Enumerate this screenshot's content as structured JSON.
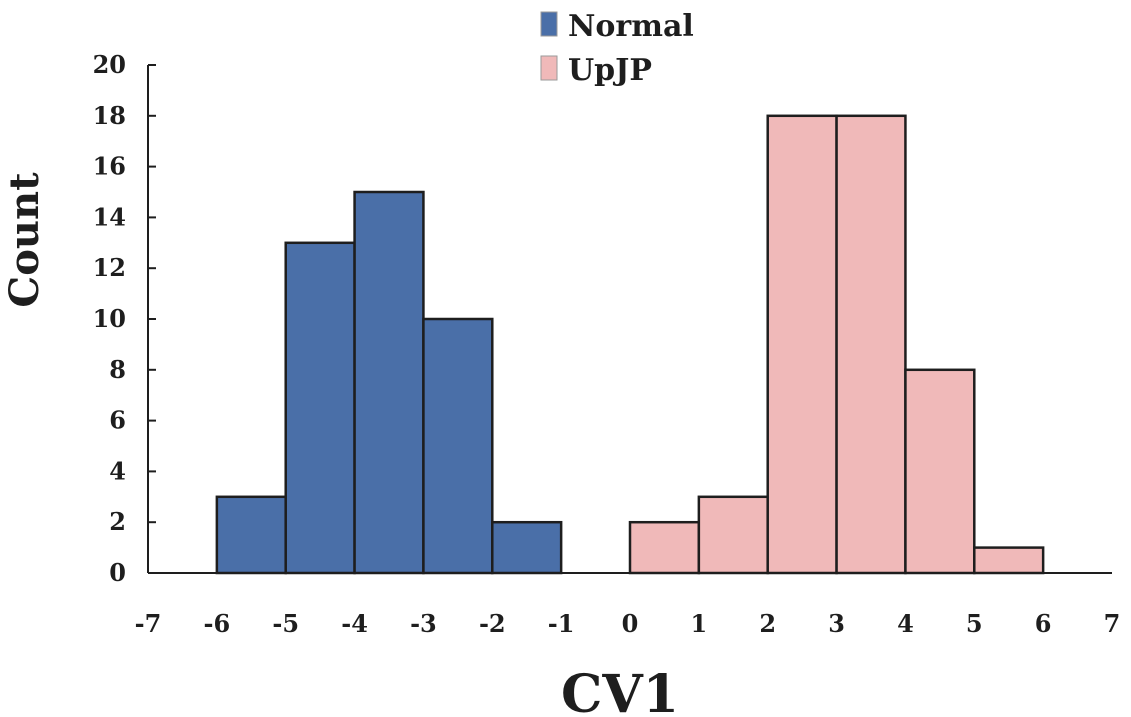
{
  "chart_data": {
    "type": "bar",
    "title": "",
    "xlabel": "CV1",
    "ylabel": "Count",
    "xlim": [
      -7,
      7
    ],
    "ylim": [
      0,
      20
    ],
    "x_ticks": [
      -7,
      -6,
      -5,
      -4,
      -3,
      -2,
      -1,
      0,
      1,
      2,
      3,
      4,
      5,
      6,
      7
    ],
    "y_ticks": [
      0,
      2,
      4,
      6,
      8,
      10,
      12,
      14,
      16,
      18,
      20
    ],
    "grid": false,
    "legend_position": "top-center",
    "series": [
      {
        "name": "Normal",
        "color": "#4a6fa8",
        "bins": [
          {
            "x0": -6,
            "x1": -5,
            "count": 3
          },
          {
            "x0": -5,
            "x1": -4,
            "count": 13
          },
          {
            "x0": -4,
            "x1": -3,
            "count": 15
          },
          {
            "x0": -3,
            "x1": -2,
            "count": 10
          },
          {
            "x0": -2,
            "x1": -1,
            "count": 2
          }
        ]
      },
      {
        "name": "UpJP",
        "color": "#f0b9b9",
        "bins": [
          {
            "x0": 0,
            "x1": 1,
            "count": 2
          },
          {
            "x0": 1,
            "x1": 2,
            "count": 3
          },
          {
            "x0": 2,
            "x1": 3,
            "count": 18
          },
          {
            "x0": 3,
            "x1": 4,
            "count": 18
          },
          {
            "x0": 4,
            "x1": 5,
            "count": 8
          },
          {
            "x0": 5,
            "x1": 6,
            "count": 1
          }
        ]
      }
    ]
  }
}
